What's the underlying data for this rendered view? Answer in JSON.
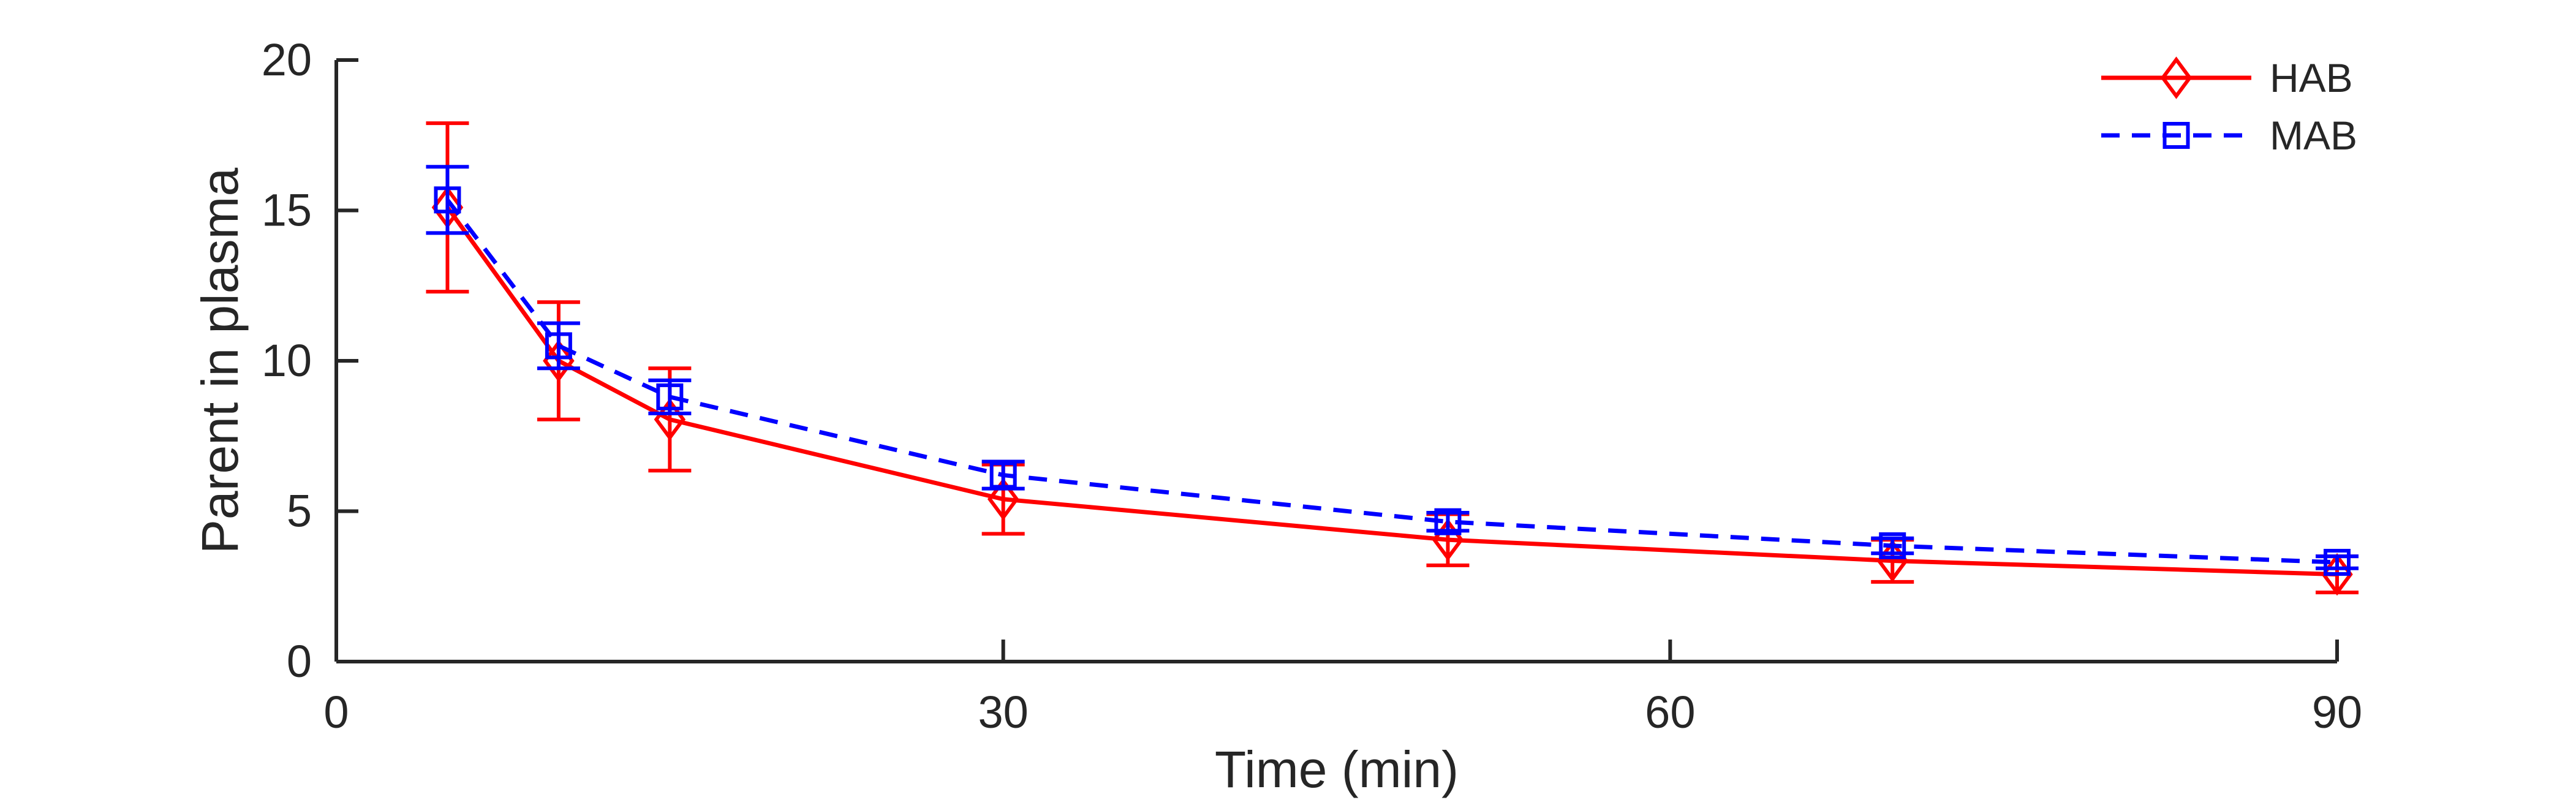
{
  "chart_data": {
    "type": "line",
    "title": "",
    "xlabel": "Time (min)",
    "ylabel": "Parent in plasma",
    "xlim": [
      0,
      90
    ],
    "ylim": [
      0,
      20
    ],
    "x_ticks": [
      0,
      30,
      60,
      90
    ],
    "y_ticks": [
      0,
      5,
      10,
      15,
      20
    ],
    "grid": false,
    "legend_position": "top-right",
    "series": [
      {
        "name": "HAB",
        "color": "#ff0000",
        "line_style": "solid",
        "marker": "diamond",
        "x": [
          5,
          10,
          15,
          30,
          50,
          70,
          90
        ],
        "y": [
          15.1,
          10.0,
          8.05,
          5.4,
          4.05,
          3.35,
          2.9
        ],
        "error": [
          2.8,
          1.95,
          1.7,
          1.15,
          0.85,
          0.7,
          0.6
        ]
      },
      {
        "name": "MAB",
        "color": "#0000ff",
        "line_style": "dashed",
        "marker": "square",
        "x": [
          5,
          10,
          15,
          30,
          50,
          70,
          90
        ],
        "y": [
          15.35,
          10.5,
          8.8,
          6.2,
          4.65,
          3.85,
          3.3
        ],
        "error": [
          1.1,
          0.75,
          0.55,
          0.45,
          0.3,
          0.25,
          0.2
        ]
      }
    ]
  }
}
